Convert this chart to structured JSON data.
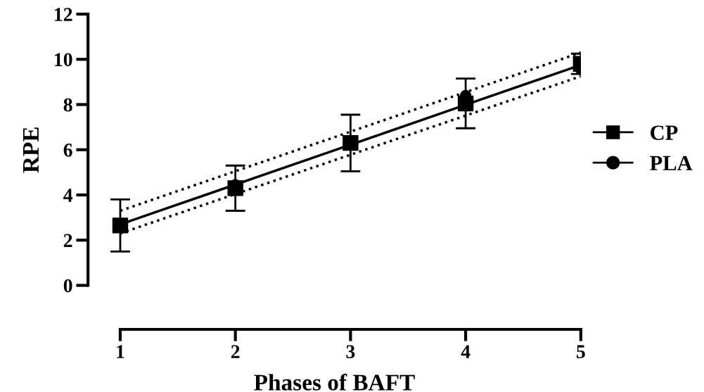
{
  "chart_data": {
    "type": "scatter",
    "xlabel": "Phases of BAFT",
    "ylabel": "RPE",
    "x": [
      1,
      2,
      3,
      4,
      5
    ],
    "series": [
      {
        "name": "CP",
        "color": "#000000",
        "marker": "square",
        "values": [
          2.65,
          4.3,
          6.3,
          8.05,
          9.8
        ],
        "errors": [
          1.15,
          1.0,
          1.25,
          1.1,
          0.45
        ]
      },
      {
        "name": "PLA",
        "color": "#000000",
        "marker": "circle",
        "values": [
          null,
          4.45,
          null,
          8.4,
          9.55
        ]
      },
      {
        "type": "line",
        "color": "#000000",
        "marker": "none",
        "line_style": "solid",
        "values": [
          2.7,
          4.46,
          6.22,
          7.99,
          9.75
        ]
      },
      {
        "type": "line",
        "color": "#000000",
        "marker": "none",
        "line_style": "dotted",
        "values": [
          3.3,
          5.05,
          6.8,
          8.55,
          10.3
        ]
      },
      {
        "type": "line",
        "color": "#000000",
        "marker": "none",
        "line_style": "dotted",
        "values": [
          2.3,
          4.04,
          5.78,
          7.51,
          9.25
        ]
      }
    ],
    "xlim": [
      0.72,
      5
    ],
    "xticks": [
      1,
      2,
      3,
      4,
      5
    ],
    "ylim": [
      0,
      12
    ],
    "yticks": [
      0,
      2,
      4,
      6,
      8,
      10,
      12
    ],
    "grid": false,
    "legend": "right"
  }
}
